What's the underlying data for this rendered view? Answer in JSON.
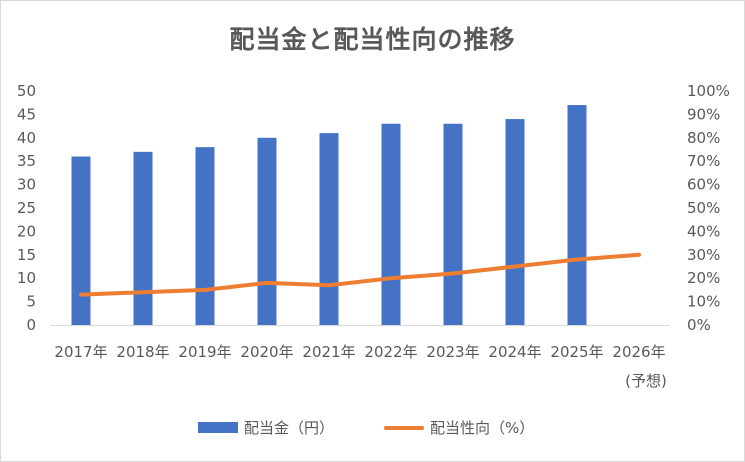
{
  "chart_data": {
    "type": "bar",
    "title": "配当金と配当性向の推移",
    "categories": [
      "2017年",
      "2018年",
      "2019年",
      "2020年",
      "2021年",
      "2022年",
      "2023年",
      "2024年",
      "2025年",
      "2026年"
    ],
    "category_sublabels": [
      "",
      "",
      "",
      "",
      "",
      "",
      "",
      "",
      "",
      "(予想)"
    ],
    "series": [
      {
        "name": "配当金（円）",
        "type": "bar",
        "axis": "left",
        "color": "#4472c4",
        "values": [
          36,
          37,
          38,
          40,
          41,
          43,
          43,
          44,
          47,
          null
        ]
      },
      {
        "name": "配当性向（%）",
        "type": "line",
        "axis": "right",
        "color": "#ed7d31",
        "values": [
          13,
          14,
          15,
          18,
          17,
          20,
          22,
          25,
          28,
          30
        ]
      }
    ],
    "y_left": {
      "ylim": [
        0,
        50
      ],
      "ticks": [
        "0",
        "5",
        "10",
        "15",
        "20",
        "25",
        "30",
        "35",
        "40",
        "45",
        "50"
      ]
    },
    "y_right": {
      "ylim": [
        0,
        100
      ],
      "ticks": [
        "0%",
        "10%",
        "20%",
        "30%",
        "40%",
        "50%",
        "60%",
        "70%",
        "80%",
        "90%",
        "100%"
      ]
    },
    "grid": false,
    "legend_position": "bottom"
  }
}
